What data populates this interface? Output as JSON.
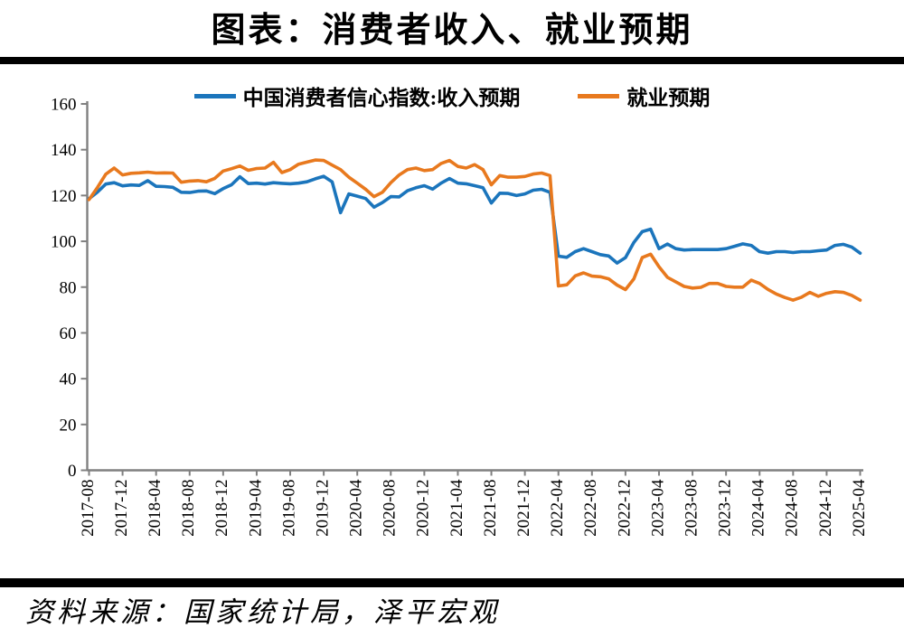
{
  "page": {
    "title": "图表：消费者收入、就业预期",
    "source": "资料来源：国家统计局，泽平宏观"
  },
  "chart_data": {
    "type": "line",
    "title": "图表：消费者收入、就业预期",
    "grid": false,
    "legend_position": "top",
    "ylim": [
      0,
      160
    ],
    "y_ticks": [
      0,
      20,
      40,
      60,
      80,
      100,
      120,
      140,
      160
    ],
    "x_tick_labels": [
      "2017-08",
      "2017-12",
      "2018-04",
      "2018-08",
      "2018-12",
      "2019-04",
      "2019-08",
      "2019-12",
      "2020-04",
      "2020-08",
      "2020-12",
      "2021-04",
      "2021-08",
      "2021-12",
      "2022-04",
      "2022-08",
      "2022-12",
      "2023-04",
      "2023-08",
      "2023-12",
      "2024-04",
      "2024-08",
      "2024-12",
      "2025-04"
    ],
    "x_months": [
      "2017-08",
      "2017-09",
      "2017-10",
      "2017-11",
      "2017-12",
      "2018-01",
      "2018-02",
      "2018-03",
      "2018-04",
      "2018-05",
      "2018-06",
      "2018-07",
      "2018-08",
      "2018-09",
      "2018-10",
      "2018-11",
      "2018-12",
      "2019-01",
      "2019-02",
      "2019-03",
      "2019-04",
      "2019-05",
      "2019-06",
      "2019-07",
      "2019-08",
      "2019-09",
      "2019-10",
      "2019-11",
      "2019-12",
      "2020-01",
      "2020-02",
      "2020-03",
      "2020-04",
      "2020-05",
      "2020-06",
      "2020-07",
      "2020-08",
      "2020-09",
      "2020-10",
      "2020-11",
      "2020-12",
      "2021-01",
      "2021-02",
      "2021-03",
      "2021-04",
      "2021-05",
      "2021-06",
      "2021-07",
      "2021-08",
      "2021-09",
      "2021-10",
      "2021-11",
      "2021-12",
      "2022-01",
      "2022-02",
      "2022-03",
      "2022-04",
      "2022-05",
      "2022-06",
      "2022-07",
      "2022-08",
      "2022-09",
      "2022-10",
      "2022-11",
      "2022-12",
      "2023-01",
      "2023-02",
      "2023-03",
      "2023-04",
      "2023-05",
      "2023-06",
      "2023-07",
      "2023-08",
      "2023-09",
      "2023-10",
      "2023-11",
      "2023-12",
      "2024-01",
      "2024-02",
      "2024-03",
      "2024-04",
      "2024-05",
      "2024-06",
      "2024-07",
      "2024-08",
      "2024-09",
      "2024-10",
      "2024-11",
      "2024-12",
      "2025-01",
      "2025-02",
      "2025-03",
      "2025-04"
    ],
    "series": [
      {
        "name": "中国消费者信心指数:收入预期",
        "color": "#1b75bc",
        "values": [
          118.6,
          121.5,
          125.0,
          125.6,
          124.2,
          124.6,
          124.4,
          126.5,
          124.0,
          123.9,
          123.6,
          121.4,
          121.3,
          121.9,
          122.0,
          120.8,
          123.0,
          124.7,
          128.2,
          125.2,
          125.4,
          125.0,
          125.6,
          125.3,
          125.1,
          125.4,
          126.0,
          127.3,
          128.4,
          126.0,
          112.5,
          120.7,
          119.7,
          118.7,
          114.9,
          116.9,
          119.5,
          119.4,
          122.1,
          123.4,
          124.3,
          122.8,
          125.4,
          127.4,
          125.4,
          125.1,
          124.3,
          123.4,
          116.7,
          121.0,
          120.9,
          120.0,
          120.7,
          122.3,
          122.7,
          121.4,
          93.5,
          93.0,
          95.5,
          96.8,
          95.5,
          94.2,
          93.6,
          90.5,
          92.9,
          99.5,
          104.2,
          105.3,
          96.8,
          98.8,
          96.8,
          96.2,
          96.4,
          96.4,
          96.4,
          96.4,
          96.8,
          97.8,
          98.9,
          98.2,
          95.5,
          94.8,
          95.5,
          95.5,
          95.1,
          95.5,
          95.5,
          95.9,
          96.2,
          98.2,
          98.7,
          97.5,
          94.8
        ]
      },
      {
        "name": "就业预期",
        "color": "#e8791e",
        "values": [
          118.2,
          123.5,
          129.3,
          132.0,
          129.0,
          129.7,
          129.9,
          130.2,
          129.8,
          129.9,
          129.8,
          125.8,
          126.3,
          126.5,
          126.0,
          127.5,
          130.7,
          131.7,
          132.9,
          131.0,
          131.8,
          132.0,
          134.5,
          130.0,
          131.3,
          133.7,
          134.6,
          135.5,
          135.3,
          133.3,
          131.3,
          128.0,
          125.4,
          122.7,
          119.5,
          121.4,
          125.6,
          129.0,
          131.3,
          132.0,
          130.9,
          131.3,
          134.0,
          135.3,
          132.7,
          132.0,
          133.5,
          131.3,
          124.7,
          128.7,
          128.0,
          128.0,
          128.3,
          129.4,
          129.8,
          128.7,
          80.5,
          81.0,
          84.9,
          86.2,
          84.8,
          84.5,
          83.6,
          80.9,
          78.9,
          83.6,
          92.9,
          94.4,
          88.9,
          84.3,
          82.3,
          80.3,
          79.6,
          79.9,
          81.6,
          81.6,
          80.3,
          80.0,
          80.0,
          83.0,
          81.6,
          79.0,
          77.0,
          75.5,
          74.3,
          75.6,
          77.7,
          76.0,
          77.3,
          78.0,
          77.7,
          76.4,
          74.3
        ]
      }
    ],
    "axis_color": "#808080",
    "tick_label_color": "#000000"
  }
}
